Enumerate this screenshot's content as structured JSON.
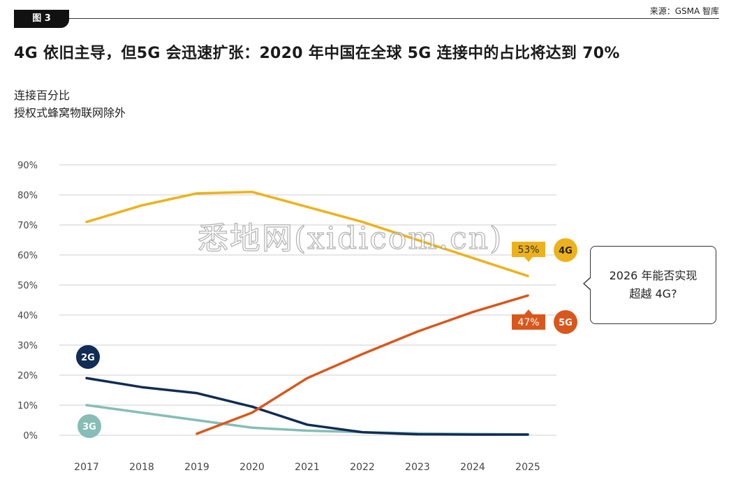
{
  "figure_label": "图 3",
  "source": "来源：GSMA 智库",
  "title": "4G 依旧主导，但5G 会迅速扩张：2020 年中国在全球 5G 连接中的占比将达到 70%",
  "subtitle_lines": [
    "连接百分比",
    "授权式蜂窝物联网除外"
  ],
  "callout_lines": [
    "2026 年能否实现",
    "超越 4G?"
  ],
  "watermark": "悉地网(xidicom.cn)",
  "colors": {
    "4G": "#EDB21B",
    "5G": "#D9571C",
    "2G": "#112C55",
    "3G": "#86BDB6",
    "grid": "#cfcfcf"
  },
  "chart_data": {
    "type": "line",
    "x": [
      "2017",
      "2018",
      "2019",
      "2020",
      "2021",
      "2022",
      "2023",
      "2024",
      "2025"
    ],
    "ylim": [
      0,
      90
    ],
    "yticks": [
      "0%",
      "10%",
      "20%",
      "30%",
      "40%",
      "50%",
      "60%",
      "70%",
      "80%",
      "90%"
    ],
    "grid": true,
    "series": [
      {
        "name": "4G",
        "values": [
          71,
          76.5,
          80.5,
          81,
          76,
          71,
          65,
          59,
          53
        ]
      },
      {
        "name": "5G",
        "values": [
          null,
          null,
          0.5,
          7.5,
          19,
          27,
          34.5,
          41,
          46.5
        ]
      },
      {
        "name": "2G",
        "values": [
          19,
          16,
          14,
          9.5,
          3.5,
          1,
          0.3,
          0.2,
          0.2
        ]
      },
      {
        "name": "3G",
        "values": [
          10,
          7.5,
          5,
          2.5,
          1.5,
          1,
          0.6,
          0.4,
          0.3
        ]
      }
    ],
    "value_labels": [
      {
        "series": "4G",
        "text": "53%"
      },
      {
        "series": "5G",
        "text": "47%"
      }
    ]
  }
}
